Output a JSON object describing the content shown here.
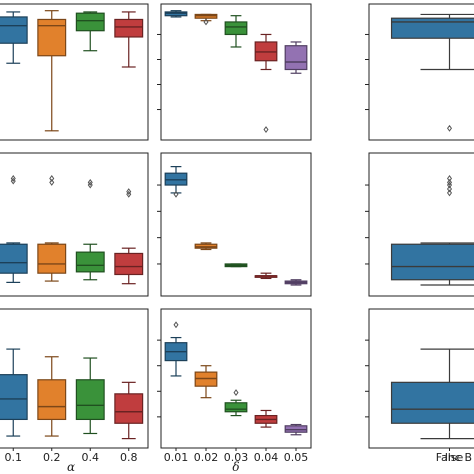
{
  "chart_data": {
    "type": "box",
    "y_range": [
      0,
      1
    ],
    "colors": [
      "#3274a1",
      "#e1812c",
      "#3a923a",
      "#c03d3e",
      "#9372b2"
    ],
    "columns": [
      {
        "key": "alpha",
        "xlabel": "α",
        "categories": [
          "0.1",
          "0.2",
          "0.4",
          "0.8"
        ]
      },
      {
        "key": "delta",
        "xlabel": "δ",
        "categories": [
          "0.01",
          "0.02",
          "0.03",
          "0.04",
          "0.05"
        ]
      },
      {
        "key": "inc",
        "xlabel": "Inc B",
        "categories": [
          "False"
        ]
      }
    ],
    "rows": [
      {
        "alpha": [
          {
            "whislo": 0.57,
            "q1": 0.73,
            "med": 0.87,
            "q3": 0.94,
            "whishi": 0.98,
            "fliers": []
          },
          {
            "whislo": 0.03,
            "q1": 0.63,
            "med": 0.87,
            "q3": 0.92,
            "whishi": 0.99,
            "fliers": []
          },
          {
            "whislo": 0.67,
            "q1": 0.83,
            "med": 0.91,
            "q3": 0.97,
            "whishi": 0.98,
            "fliers": []
          },
          {
            "whislo": 0.54,
            "q1": 0.78,
            "med": 0.86,
            "q3": 0.92,
            "whishi": 0.98,
            "fliers": []
          }
        ],
        "delta": [
          {
            "whislo": 0.94,
            "q1": 0.95,
            "med": 0.97,
            "q3": 0.98,
            "whishi": 0.99,
            "fliers": []
          },
          {
            "whislo": 0.91,
            "q1": 0.93,
            "med": 0.95,
            "q3": 0.96,
            "whishi": 0.96,
            "fliers": [
              0.9
            ]
          },
          {
            "whislo": 0.7,
            "q1": 0.8,
            "med": 0.86,
            "q3": 0.9,
            "whishi": 0.95,
            "fliers": []
          },
          {
            "whislo": 0.52,
            "q1": 0.59,
            "med": 0.66,
            "q3": 0.74,
            "whishi": 0.8,
            "fliers": [
              0.04
            ]
          },
          {
            "whislo": 0.49,
            "q1": 0.52,
            "med": 0.58,
            "q3": 0.71,
            "whishi": 0.74,
            "fliers": []
          }
        ],
        "inc": [
          {
            "whislo": 0.52,
            "q1": 0.77,
            "med": 0.9,
            "q3": 0.93,
            "whishi": 0.96,
            "fliers": [
              0.05
            ]
          }
        ]
      },
      {
        "alpha": [
          {
            "whislo": 0.06,
            "q1": 0.13,
            "med": 0.21,
            "q3": 0.35,
            "whishi": 0.36,
            "fliers": [
              0.83,
              0.85
            ]
          },
          {
            "whislo": 0.07,
            "q1": 0.13,
            "med": 0.2,
            "q3": 0.35,
            "whishi": 0.36,
            "fliers": [
              0.82,
              0.85
            ]
          },
          {
            "whislo": 0.08,
            "q1": 0.14,
            "med": 0.19,
            "q3": 0.29,
            "whishi": 0.35,
            "fliers": [
              0.8,
              0.82
            ]
          },
          {
            "whislo": 0.05,
            "q1": 0.12,
            "med": 0.18,
            "q3": 0.28,
            "whishi": 0.32,
            "fliers": [
              0.73,
              0.75
            ]
          }
        ],
        "delta": [
          {
            "whislo": 0.74,
            "q1": 0.8,
            "med": 0.84,
            "q3": 0.89,
            "whishi": 0.94,
            "fliers": [
              0.73
            ]
          },
          {
            "whislo": 0.31,
            "q1": 0.32,
            "med": 0.33,
            "q3": 0.35,
            "whishi": 0.36,
            "fliers": []
          },
          {
            "whislo": 0.18,
            "q1": 0.18,
            "med": 0.19,
            "q3": 0.2,
            "whishi": 0.2,
            "fliers": []
          },
          {
            "whislo": 0.09,
            "q1": 0.1,
            "med": 0.11,
            "q3": 0.11,
            "whishi": 0.13,
            "fliers": []
          },
          {
            "whislo": 0.04,
            "q1": 0.05,
            "med": 0.06,
            "q3": 0.07,
            "whishi": 0.08,
            "fliers": []
          }
        ],
        "inc": [
          {
            "whislo": 0.04,
            "q1": 0.08,
            "med": 0.18,
            "q3": 0.35,
            "whishi": 0.36,
            "fliers": [
              0.74,
              0.77,
              0.8,
              0.82,
              0.85
            ]
          }
        ]
      },
      {
        "alpha": [
          {
            "whislo": 0.05,
            "q1": 0.18,
            "med": 0.34,
            "q3": 0.53,
            "whishi": 0.73,
            "fliers": []
          },
          {
            "whislo": 0.05,
            "q1": 0.18,
            "med": 0.28,
            "q3": 0.49,
            "whishi": 0.67,
            "fliers": []
          },
          {
            "whislo": 0.07,
            "q1": 0.18,
            "med": 0.29,
            "q3": 0.49,
            "whishi": 0.66,
            "fliers": []
          },
          {
            "whislo": 0.03,
            "q1": 0.15,
            "med": 0.24,
            "q3": 0.38,
            "whishi": 0.47,
            "fliers": []
          }
        ],
        "delta": [
          {
            "whislo": 0.52,
            "q1": 0.64,
            "med": 0.71,
            "q3": 0.78,
            "whishi": 0.82,
            "fliers": [
              0.92
            ]
          },
          {
            "whislo": 0.35,
            "q1": 0.44,
            "med": 0.5,
            "q3": 0.55,
            "whishi": 0.6,
            "fliers": []
          },
          {
            "whislo": 0.21,
            "q1": 0.24,
            "med": 0.26,
            "q3": 0.31,
            "whishi": 0.33,
            "fliers": [
              0.39
            ]
          },
          {
            "whislo": 0.12,
            "q1": 0.15,
            "med": 0.18,
            "q3": 0.21,
            "whishi": 0.25,
            "fliers": []
          },
          {
            "whislo": 0.06,
            "q1": 0.08,
            "med": 0.1,
            "q3": 0.13,
            "whishi": 0.14,
            "fliers": []
          }
        ],
        "inc": [
          {
            "whislo": 0.03,
            "q1": 0.15,
            "med": 0.26,
            "q3": 0.47,
            "whishi": 0.73,
            "fliers": []
          }
        ]
      }
    ]
  }
}
